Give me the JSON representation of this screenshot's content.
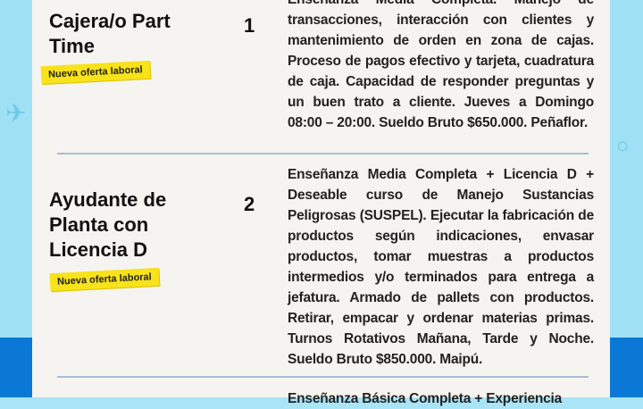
{
  "jobs": [
    {
      "title_lines": [
        "Cajera/o Part",
        "Time"
      ],
      "badge": "Nueva oferta laboral",
      "number": "1",
      "description": "Enseñanza Media Completa. Manejo de transacciones, interacción con clientes y mantenimiento de orden en zona de cajas. Proceso de pagos efectivo y tarjeta, cuadratura de caja. Capacidad de responder preguntas y un buen trato a cliente. Jueves a Domingo 08:00 – 20:00. Sueldo Bruto $650.000. Peñaflor."
    },
    {
      "title_lines": [
        "Ayudante de",
        "Planta con",
        "Licencia D"
      ],
      "badge": "Nueva oferta laboral",
      "number": "2",
      "description": "Enseñanza Media Completa + Licencia D + Deseable curso de Manejo Sustancias Peligrosas (SUSPEL). Ejecutar la fabricación de productos según indicaciones, envasar productos, tomar muestras a productos intermedios y/o terminados para entrega a jefatura. Armado de pallets con productos. Retirar, empacar y ordenar materias primas. Turnos Rotativos Mañana, Tarde y Noche. Sueldo Bruto $850.000. Maipú."
    },
    {
      "description": "Enseñanza Básica Completa + Experiencia"
    }
  ],
  "colors": {
    "badge": "#f7e21b",
    "bg_light": "#a9e4f7",
    "bg_dark": "#0b78d6",
    "card": "#f6f4f0"
  }
}
